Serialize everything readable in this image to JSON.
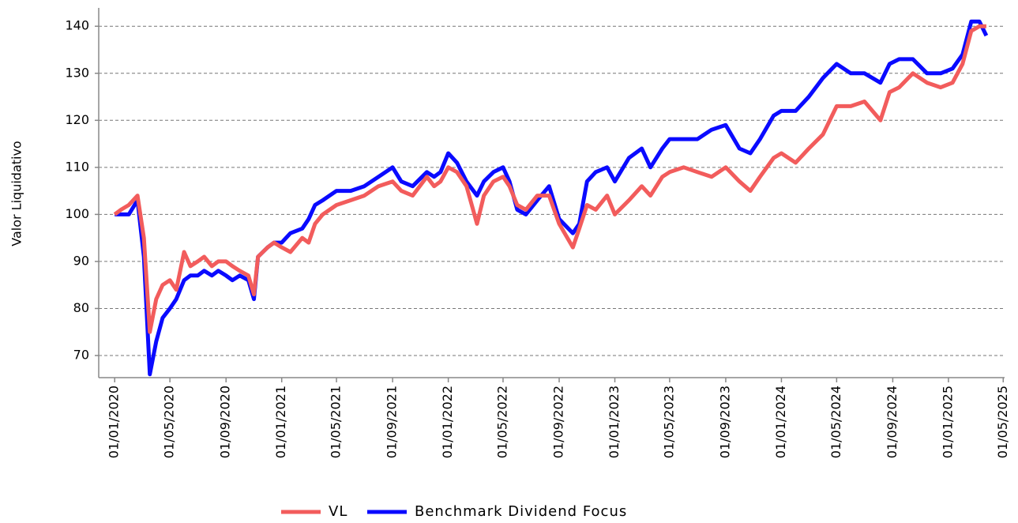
{
  "chart_data": {
    "type": "line",
    "y_label": "Valor Liquidativo",
    "x": [
      "2020-01-01",
      "2020-01-15",
      "2020-02-01",
      "2020-02-20",
      "2020-03-05",
      "2020-03-18",
      "2020-04-01",
      "2020-04-15",
      "2020-05-01",
      "2020-05-15",
      "2020-06-01",
      "2020-06-15",
      "2020-07-01",
      "2020-07-15",
      "2020-08-01",
      "2020-08-15",
      "2020-09-01",
      "2020-09-15",
      "2020-10-01",
      "2020-10-20",
      "2020-11-01",
      "2020-11-10",
      "2020-12-01",
      "2020-12-15",
      "2021-01-01",
      "2021-01-20",
      "2021-02-15",
      "2021-03-01",
      "2021-03-15",
      "2021-04-01",
      "2021-05-01",
      "2021-06-01",
      "2021-07-01",
      "2021-08-01",
      "2021-09-01",
      "2021-09-20",
      "2021-10-15",
      "2021-11-15",
      "2021-12-01",
      "2021-12-15",
      "2022-01-01",
      "2022-01-20",
      "2022-02-10",
      "2022-03-05",
      "2022-03-20",
      "2022-04-10",
      "2022-05-01",
      "2022-05-15",
      "2022-06-01",
      "2022-06-20",
      "2022-07-15",
      "2022-08-10",
      "2022-09-01",
      "2022-10-01",
      "2022-10-15",
      "2022-11-01",
      "2022-11-20",
      "2022-12-15",
      "2023-01-01",
      "2023-02-01",
      "2023-03-01",
      "2023-03-20",
      "2023-04-15",
      "2023-05-01",
      "2023-06-01",
      "2023-07-01",
      "2023-08-01",
      "2023-09-01",
      "2023-10-01",
      "2023-10-25",
      "2023-11-15",
      "2023-12-15",
      "2024-01-01",
      "2024-02-01",
      "2024-03-01",
      "2024-04-01",
      "2024-05-01",
      "2024-06-01",
      "2024-07-01",
      "2024-08-05",
      "2024-08-25",
      "2024-09-15",
      "2024-10-15",
      "2024-11-15",
      "2024-12-15",
      "2025-01-10",
      "2025-02-01",
      "2025-02-20",
      "2025-03-10",
      "2025-03-25"
    ],
    "series": [
      {
        "name": "VL",
        "color": "#f25c5c",
        "values": [
          100,
          101,
          102,
          104,
          95,
          75,
          82,
          85,
          86,
          84,
          92,
          89,
          90,
          91,
          89,
          90,
          90,
          89,
          88,
          87,
          83,
          91,
          93,
          94,
          93,
          92,
          95,
          94,
          98,
          100,
          102,
          103,
          104,
          106,
          107,
          105,
          104,
          108,
          106,
          107,
          110,
          109,
          106,
          98,
          104,
          107,
          108,
          106,
          102,
          101,
          104,
          104,
          98,
          93,
          97,
          102,
          101,
          104,
          100,
          103,
          106,
          104,
          108,
          109,
          110,
          109,
          108,
          110,
          107,
          105,
          108,
          112,
          113,
          111,
          114,
          117,
          123,
          123,
          124,
          120,
          126,
          127,
          130,
          128,
          127,
          128,
          132,
          139,
          140,
          140
        ]
      },
      {
        "name": "Benchmark Dividend Focus",
        "color": "#0a0aff",
        "values": [
          100,
          100,
          100,
          103,
          91,
          66,
          73,
          78,
          80,
          82,
          86,
          87,
          87,
          88,
          87,
          88,
          87,
          86,
          87,
          86,
          82,
          91,
          93,
          94,
          94,
          96,
          97,
          99,
          102,
          103,
          105,
          105,
          106,
          108,
          110,
          107,
          106,
          109,
          108,
          109,
          113,
          111,
          107,
          104,
          107,
          109,
          110,
          107,
          101,
          100,
          103,
          106,
          99,
          96,
          98,
          107,
          109,
          110,
          107,
          112,
          114,
          110,
          114,
          116,
          116,
          116,
          118,
          119,
          114,
          113,
          116,
          121,
          122,
          122,
          125,
          129,
          132,
          130,
          130,
          128,
          132,
          133,
          133,
          130,
          130,
          131,
          134,
          141,
          141,
          138
        ]
      }
    ],
    "xlim": [
      "2019-11-27",
      "2025-05-04"
    ],
    "xticks": [
      {
        "value": "2020-01-01",
        "label": "01/01/2020"
      },
      {
        "value": "2020-05-01",
        "label": "01/05/2020"
      },
      {
        "value": "2020-09-01",
        "label": "01/09/2020"
      },
      {
        "value": "2021-01-01",
        "label": "01/01/2021"
      },
      {
        "value": "2021-05-01",
        "label": "01/05/2021"
      },
      {
        "value": "2021-09-01",
        "label": "01/09/2021"
      },
      {
        "value": "2022-01-01",
        "label": "01/01/2022"
      },
      {
        "value": "2022-05-01",
        "label": "01/05/2022"
      },
      {
        "value": "2022-09-01",
        "label": "01/09/2022"
      },
      {
        "value": "2023-01-01",
        "label": "01/01/2023"
      },
      {
        "value": "2023-05-01",
        "label": "01/05/2023"
      },
      {
        "value": "2023-09-01",
        "label": "01/09/2023"
      },
      {
        "value": "2024-01-01",
        "label": "01/01/2024"
      },
      {
        "value": "2024-05-01",
        "label": "01/05/2024"
      },
      {
        "value": "2024-09-01",
        "label": "01/09/2024"
      },
      {
        "value": "2025-01-01",
        "label": "01/01/2025"
      },
      {
        "value": "2025-05-01",
        "label": "01/05/2025"
      }
    ],
    "ylim": [
      65.3,
      143.9
    ],
    "yticks": [
      70,
      80,
      90,
      100,
      110,
      120,
      130,
      140
    ],
    "grid": true,
    "legend": "bottom"
  }
}
